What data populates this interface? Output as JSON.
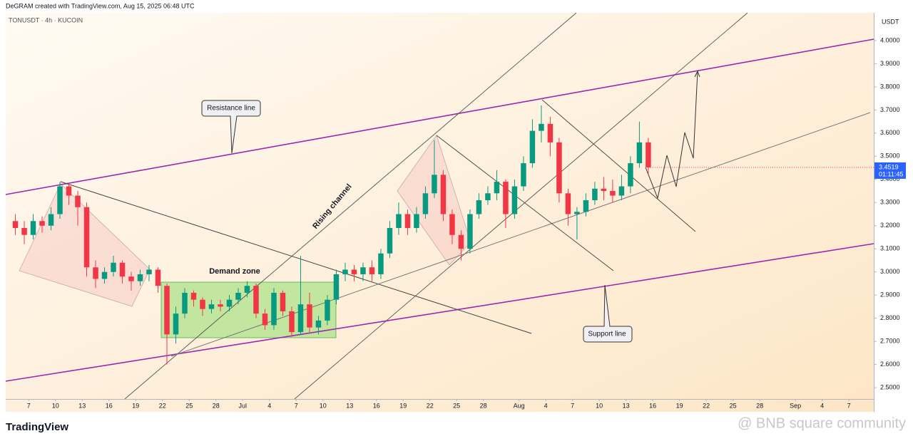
{
  "header": "DeGRAM created with TradingView.com, Aug 15, 2025 06:48 UTC",
  "footer": {
    "brand": "TradingView",
    "watermark": "@ BNB square community"
  },
  "chart_data": {
    "type": "candlestick",
    "title": "TONUSDT · 4h · KUCOIN",
    "y_axis_label": "USDT",
    "up_color": "#089981",
    "down_color": "#f23645",
    "x": [
      "2025-06-05T12:00",
      "2025-06-06T12:00",
      "2025-06-07T12:00",
      "2025-06-08T12:00",
      "2025-06-09T12:00",
      "2025-06-10T12:00",
      "2025-06-11T12:00",
      "2025-06-12T12:00",
      "2025-06-13T12:00",
      "2025-06-14T12:00",
      "2025-06-15T12:00",
      "2025-06-16T12:00",
      "2025-06-17T12:00",
      "2025-06-18T12:00",
      "2025-06-19T12:00",
      "2025-06-20T12:00",
      "2025-06-21T12:00",
      "2025-06-22T12:00",
      "2025-06-23T12:00",
      "2025-06-24T12:00",
      "2025-06-25T12:00",
      "2025-06-26T12:00",
      "2025-06-27T12:00",
      "2025-06-28T12:00",
      "2025-06-29T12:00",
      "2025-06-30T12:00",
      "2025-07-01T12:00",
      "2025-07-02T12:00",
      "2025-07-03T12:00",
      "2025-07-04T12:00",
      "2025-07-05T12:00",
      "2025-07-06T12:00",
      "2025-07-07T12:00",
      "2025-07-08T12:00",
      "2025-07-09T12:00",
      "2025-07-10T12:00",
      "2025-07-11T12:00",
      "2025-07-12T12:00",
      "2025-07-13T12:00",
      "2025-07-14T12:00",
      "2025-07-15T12:00",
      "2025-07-16T12:00",
      "2025-07-17T12:00",
      "2025-07-18T12:00",
      "2025-07-19T12:00",
      "2025-07-20T12:00",
      "2025-07-21T12:00",
      "2025-07-22T12:00",
      "2025-07-23T12:00",
      "2025-07-24T12:00",
      "2025-07-25T12:00",
      "2025-07-26T12:00",
      "2025-07-27T12:00",
      "2025-07-28T12:00",
      "2025-07-29T12:00",
      "2025-07-30T12:00",
      "2025-07-31T12:00",
      "2025-08-01T12:00",
      "2025-08-02T12:00",
      "2025-08-03T12:00",
      "2025-08-04T12:00",
      "2025-08-05T12:00",
      "2025-08-06T12:00",
      "2025-08-07T12:00",
      "2025-08-08T12:00",
      "2025-08-09T12:00",
      "2025-08-10T12:00",
      "2025-08-11T12:00",
      "2025-08-12T12:00",
      "2025-08-13T12:00",
      "2025-08-14T12:00",
      "2025-08-15T12:00"
    ],
    "open": [
      3.22,
      3.19,
      3.16,
      3.22,
      3.2,
      3.25,
      3.37,
      3.33,
      3.28,
      3.02,
      2.97,
      3.0,
      3.04,
      2.98,
      2.96,
      2.99,
      3.01,
      2.94,
      2.73,
      2.82,
      2.91,
      2.88,
      2.84,
      2.86,
      2.85,
      2.88,
      2.91,
      2.94,
      2.82,
      2.77,
      2.91,
      2.83,
      2.74,
      2.86,
      2.76,
      2.79,
      2.88,
      2.99,
      3.01,
      2.99,
      3.02,
      2.99,
      3.08,
      3.19,
      3.25,
      3.19,
      3.25,
      3.34,
      3.42,
      3.25,
      3.16,
      3.1,
      3.25,
      3.31,
      3.34,
      3.39,
      3.25,
      3.37,
      3.47,
      3.61,
      3.64,
      3.56,
      3.34,
      3.25,
      3.26,
      3.31,
      3.36,
      3.35,
      3.33,
      3.37,
      3.47,
      3.56
    ],
    "high": [
      3.25,
      3.22,
      3.25,
      3.24,
      3.28,
      3.39,
      3.38,
      3.35,
      3.3,
      3.05,
      3.02,
      3.07,
      3.05,
      3.0,
      3.01,
      3.03,
      3.02,
      2.95,
      2.85,
      2.93,
      2.92,
      2.89,
      2.88,
      2.88,
      2.9,
      2.93,
      2.96,
      2.95,
      2.84,
      2.93,
      2.92,
      2.85,
      3.07,
      2.91,
      2.81,
      2.9,
      3.01,
      3.04,
      3.03,
      3.04,
      3.05,
      3.1,
      3.22,
      3.3,
      3.27,
      3.28,
      3.37,
      3.57,
      3.44,
      3.27,
      3.18,
      3.27,
      3.34,
      3.37,
      3.44,
      3.4,
      3.4,
      3.5,
      3.66,
      3.72,
      3.67,
      3.58,
      3.36,
      3.28,
      3.34,
      3.39,
      3.41,
      3.4,
      3.42,
      3.5,
      3.65,
      3.58
    ],
    "low": [
      3.16,
      3.12,
      3.14,
      3.17,
      3.18,
      3.23,
      3.29,
      3.2,
      2.98,
      2.93,
      2.95,
      2.98,
      2.95,
      2.92,
      2.94,
      2.96,
      2.91,
      2.6,
      2.69,
      2.8,
      2.85,
      2.81,
      2.82,
      2.83,
      2.83,
      2.86,
      2.89,
      2.8,
      2.75,
      2.75,
      2.81,
      2.72,
      2.73,
      2.74,
      2.73,
      2.77,
      2.86,
      2.96,
      2.96,
      2.96,
      2.96,
      2.97,
      3.06,
      3.16,
      3.16,
      3.17,
      3.23,
      3.32,
      3.22,
      3.12,
      3.05,
      3.08,
      3.23,
      3.29,
      3.31,
      3.19,
      3.23,
      3.35,
      3.45,
      3.56,
      3.5,
      3.3,
      3.2,
      3.14,
      3.24,
      3.29,
      3.31,
      3.3,
      3.31,
      3.34,
      3.45,
      3.42
    ],
    "close": [
      3.19,
      3.16,
      3.22,
      3.2,
      3.25,
      3.37,
      3.33,
      3.28,
      3.02,
      2.97,
      3.0,
      3.04,
      2.98,
      2.96,
      2.99,
      3.01,
      2.94,
      2.73,
      2.82,
      2.91,
      2.88,
      2.84,
      2.86,
      2.85,
      2.88,
      2.91,
      2.94,
      2.82,
      2.77,
      2.91,
      2.83,
      2.74,
      2.86,
      2.76,
      2.79,
      2.88,
      2.99,
      3.01,
      2.99,
      3.02,
      2.99,
      3.08,
      3.19,
      3.25,
      3.19,
      3.25,
      3.34,
      3.42,
      3.25,
      3.16,
      3.1,
      3.25,
      3.31,
      3.34,
      3.39,
      3.25,
      3.37,
      3.47,
      3.61,
      3.64,
      3.56,
      3.34,
      3.25,
      3.26,
      3.31,
      3.36,
      3.35,
      3.33,
      3.37,
      3.47,
      3.56,
      3.4519
    ],
    "xlim": [
      "2025-06-04T10:00",
      "2025-09-09T19:00"
    ],
    "xticks": [
      {
        "value": "2025-06-07T00:00",
        "label": "7"
      },
      {
        "value": "2025-06-10T00:00",
        "label": "10"
      },
      {
        "value": "2025-06-13T00:00",
        "label": "13"
      },
      {
        "value": "2025-06-16T00:00",
        "label": "16"
      },
      {
        "value": "2025-06-19T00:00",
        "label": "19"
      },
      {
        "value": "2025-06-22T00:00",
        "label": "22"
      },
      {
        "value": "2025-06-25T00:00",
        "label": "25"
      },
      {
        "value": "2025-06-28T00:00",
        "label": "28"
      },
      {
        "value": "2025-07-01T00:00",
        "label": "Jul"
      },
      {
        "value": "2025-07-04T00:00",
        "label": "4"
      },
      {
        "value": "2025-07-07T00:00",
        "label": "7"
      },
      {
        "value": "2025-07-10T00:00",
        "label": "10"
      },
      {
        "value": "2025-07-13T00:00",
        "label": "13"
      },
      {
        "value": "2025-07-16T00:00",
        "label": "16"
      },
      {
        "value": "2025-07-19T00:00",
        "label": "19"
      },
      {
        "value": "2025-07-22T00:00",
        "label": "22"
      },
      {
        "value": "2025-07-25T00:00",
        "label": "25"
      },
      {
        "value": "2025-07-28T00:00",
        "label": "28"
      },
      {
        "value": "2025-08-01T00:00",
        "label": "Aug"
      },
      {
        "value": "2025-08-04T00:00",
        "label": "4"
      },
      {
        "value": "2025-08-07T00:00",
        "label": "7"
      },
      {
        "value": "2025-08-10T00:00",
        "label": "10"
      },
      {
        "value": "2025-08-13T00:00",
        "label": "13"
      },
      {
        "value": "2025-08-16T00:00",
        "label": "16"
      },
      {
        "value": "2025-08-19T00:00",
        "label": "19"
      },
      {
        "value": "2025-08-22T00:00",
        "label": "22"
      },
      {
        "value": "2025-08-25T00:00",
        "label": "25"
      },
      {
        "value": "2025-08-28T00:00",
        "label": "28"
      },
      {
        "value": "2025-09-01T00:00",
        "label": "Sep"
      },
      {
        "value": "2025-09-04T00:00",
        "label": "4"
      },
      {
        "value": "2025-09-07T00:00",
        "label": "7"
      }
    ],
    "ylim": [
      2.451,
      4.12
    ],
    "yticks": [
      {
        "value": 2.5,
        "label": "2.5000"
      },
      {
        "value": 2.6,
        "label": "2.6000"
      },
      {
        "value": 2.7,
        "label": "2.7000"
      },
      {
        "value": 2.8,
        "label": "2.8000"
      },
      {
        "value": 2.9,
        "label": "2.9000"
      },
      {
        "value": 3.0,
        "label": "3.0000"
      },
      {
        "value": 3.1,
        "label": "3.1000"
      },
      {
        "value": 3.2,
        "label": "3.2000"
      },
      {
        "value": 3.3,
        "label": "3.3000"
      },
      {
        "value": 3.4,
        "label": "3.4000"
      },
      {
        "value": 3.5,
        "label": "3.5000"
      },
      {
        "value": 3.6,
        "label": "3.6000"
      },
      {
        "value": 3.7,
        "label": "3.7000"
      },
      {
        "value": 3.8,
        "label": "3.8000"
      },
      {
        "value": 3.9,
        "label": "3.9000"
      },
      {
        "value": 4.0,
        "label": "4.0000"
      }
    ],
    "last_price": 3.4519,
    "countdown": "01:11:45",
    "annotations": {
      "resistance": "Resistance line",
      "support": "Support line",
      "demand": "Demand zone",
      "channel": "Rising channel"
    }
  }
}
